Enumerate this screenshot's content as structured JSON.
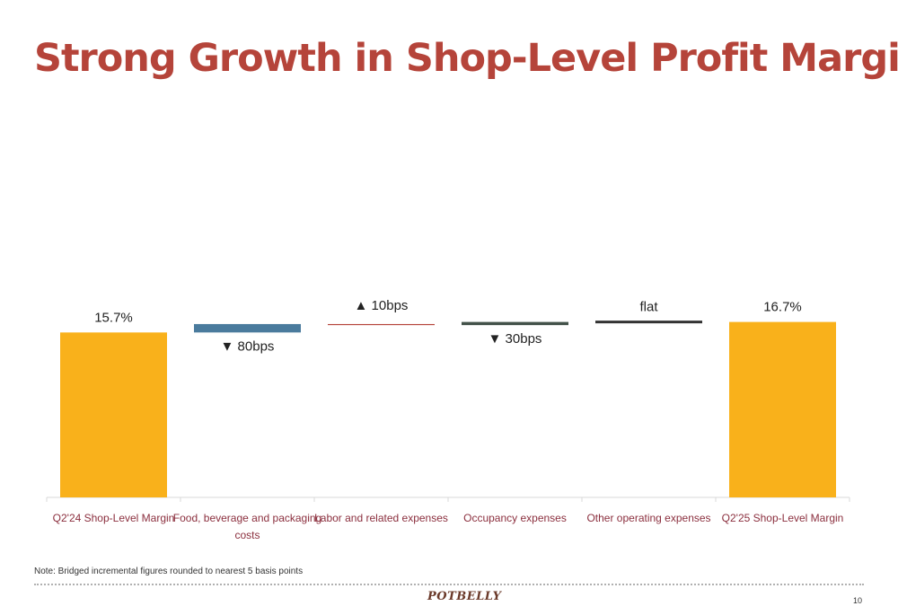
{
  "slide": {
    "title": "Strong Growth in Shop-Level Profit Margin",
    "note": "Note: Bridged incremental figures rounded to nearest 5 basis points",
    "logo": "POTBELLY",
    "page_number": "10"
  },
  "chart_data": {
    "type": "bar",
    "subtype": "waterfall",
    "unit": "%",
    "categories": [
      "Q2'24 Shop-Level Margin",
      "Food, beverage and packaging costs",
      "Labor and related expenses",
      "Occupancy expenses",
      "Other operating expenses",
      "Q2'25 Shop-Level Margin"
    ],
    "bars": [
      {
        "category": "Q2'24 Shop-Level Margin",
        "kind": "total",
        "start": 0,
        "end": 15.7,
        "label": "15.7%",
        "color": "#f9b11b"
      },
      {
        "category": "Food, beverage and packaging costs",
        "kind": "increase",
        "start": 15.7,
        "end": 16.5,
        "label": "▼ 80bps",
        "color": "#4a7b9d"
      },
      {
        "category": "Labor and related expenses",
        "kind": "decrease",
        "start": 16.5,
        "end": 16.4,
        "label": "▲ 10bps",
        "color": "#b5443a"
      },
      {
        "category": "Occupancy expenses",
        "kind": "increase",
        "start": 16.4,
        "end": 16.7,
        "label": "▼ 30bps",
        "color": "#43524a"
      },
      {
        "category": "Other operating expenses",
        "kind": "flat",
        "start": 16.7,
        "end": 16.7,
        "label": "flat",
        "color": "#333333"
      },
      {
        "category": "Q2'25 Shop-Level Margin",
        "kind": "total",
        "start": 0,
        "end": 16.7,
        "label": "16.7%",
        "color": "#f9b11b"
      }
    ],
    "axis": {
      "baseline": 0,
      "category_label_color": "#8b2f3e",
      "axis_color": "#d9d9d9"
    },
    "grid": false,
    "legend": "none"
  }
}
